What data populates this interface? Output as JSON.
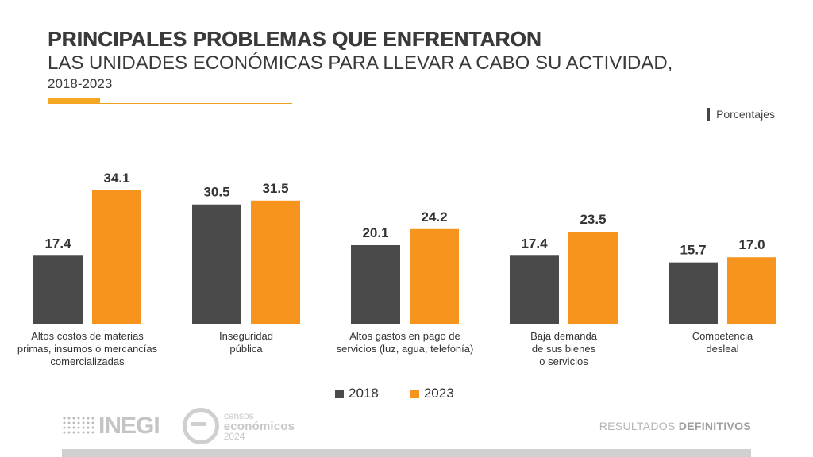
{
  "header": {
    "title": "PRINCIPALES PROBLEMAS QUE ENFRENTARON",
    "subtitle": "LAS UNIDADES ECONÓMICAS PARA LLEVAR A CABO SU ACTIVIDAD,",
    "period": "2018-2023",
    "units": "Porcentajes"
  },
  "chart_data": {
    "type": "bar",
    "categories": [
      "Altos costos de materias primas, insumos o mercancías comercializadas",
      "Inseguridad pública",
      "Altos gastos en pago de servicios (luz, agua, telefonía)",
      "Baja demanda de sus bienes o servicios",
      "Competencia desleal"
    ],
    "category_lines": [
      [
        "Altos costos de materias",
        "primas, insumos o mercancías",
        "comercializadas"
      ],
      [
        "Inseguridad",
        "pública"
      ],
      [
        "Altos gastos en pago de",
        "servicios (luz, agua, telefonía)"
      ],
      [
        "Baja demanda",
        "de sus bienes",
        "o servicios"
      ],
      [
        "Competencia",
        "desleal"
      ]
    ],
    "series": [
      {
        "name": "2018",
        "values": [
          17.4,
          30.5,
          20.1,
          17.4,
          15.7
        ],
        "labels": [
          "17.4",
          "30.5",
          "20.1",
          "17.4",
          "15.7"
        ],
        "color": "#4a4a4a"
      },
      {
        "name": "2023",
        "values": [
          34.1,
          31.5,
          24.2,
          23.5,
          17.0
        ],
        "labels": [
          "34.1",
          "31.5",
          "24.2",
          "23.5",
          "17.0"
        ],
        "color": "#f7941d"
      }
    ],
    "ylim": [
      0,
      40
    ],
    "grid": false,
    "legend": "bottom"
  },
  "footer": {
    "inegi": "INEGI",
    "censos_line1": "censos",
    "censos_line2": "económicos",
    "censos_year": "2024",
    "results_prefix": "RESULTADOS ",
    "results_bold": "DEFINITIVOS"
  }
}
